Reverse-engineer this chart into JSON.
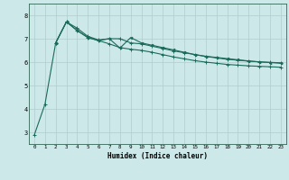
{
  "xlabel": "Humidex (Indice chaleur)",
  "bg_color": "#cde8e8",
  "grid_color": "#b0cccc",
  "line_color": "#1a6b5a",
  "xlim": [
    -0.5,
    23.5
  ],
  "ylim": [
    2.5,
    8.5
  ],
  "xticks": [
    0,
    1,
    2,
    3,
    4,
    5,
    6,
    7,
    8,
    9,
    10,
    11,
    12,
    13,
    14,
    15,
    16,
    17,
    18,
    19,
    20,
    21,
    22,
    23
  ],
  "yticks": [
    3,
    4,
    5,
    6,
    7,
    8
  ],
  "line1_x": [
    0,
    1,
    2,
    3,
    4,
    5,
    6,
    7,
    8,
    9,
    10,
    11,
    12,
    13,
    14,
    15,
    16,
    17,
    18,
    19,
    20,
    21,
    22,
    23
  ],
  "line1_y": [
    2.88,
    4.2,
    6.82,
    7.72,
    7.45,
    7.1,
    6.95,
    7.0,
    7.0,
    6.82,
    6.78,
    6.68,
    6.58,
    6.48,
    6.4,
    6.32,
    6.24,
    6.18,
    6.12,
    6.08,
    6.04,
    6.01,
    5.99,
    5.97
  ],
  "line2_x": [
    2,
    3,
    4,
    5,
    6,
    7,
    8,
    9,
    10,
    11,
    12,
    13,
    14,
    15,
    16,
    17,
    18,
    19,
    20,
    21,
    22,
    23
  ],
  "line2_y": [
    6.82,
    7.72,
    7.35,
    7.05,
    6.92,
    7.0,
    6.6,
    7.05,
    6.82,
    6.72,
    6.62,
    6.52,
    6.42,
    6.32,
    6.25,
    6.2,
    6.15,
    6.1,
    6.05,
    6.01,
    5.98,
    5.95
  ],
  "line3_x": [
    2,
    3,
    4,
    5,
    6,
    7,
    8,
    9,
    10,
    11,
    12,
    13,
    14,
    15,
    16,
    17,
    18,
    19,
    20,
    21,
    22,
    23
  ],
  "line3_y": [
    6.82,
    7.72,
    7.35,
    7.05,
    6.92,
    6.78,
    6.62,
    6.55,
    6.5,
    6.42,
    6.32,
    6.22,
    6.14,
    6.06,
    6.0,
    5.95,
    5.9,
    5.87,
    5.84,
    5.82,
    5.8,
    5.78
  ]
}
